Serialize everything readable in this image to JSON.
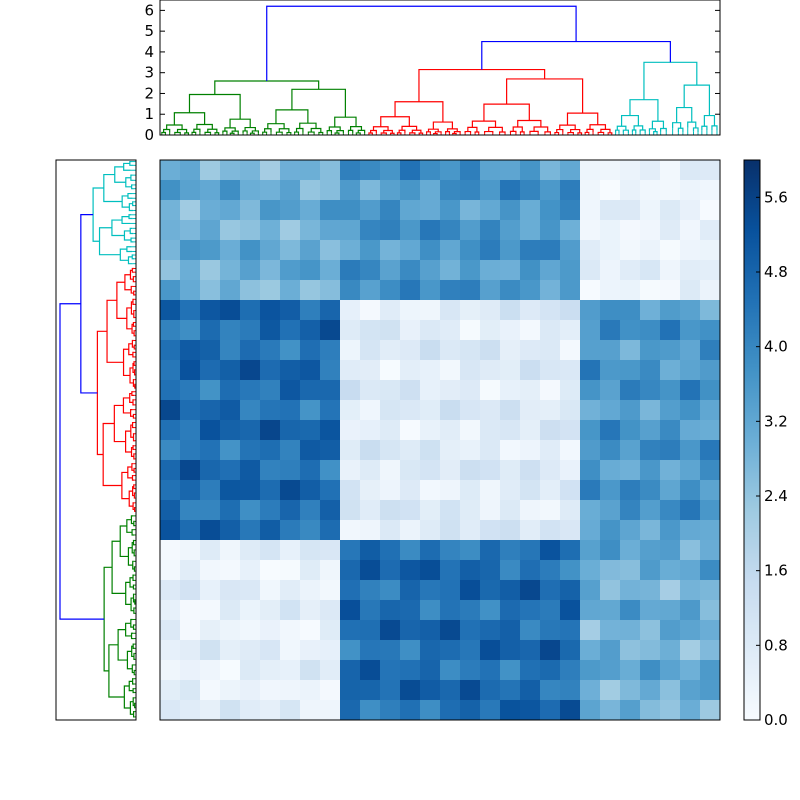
{
  "chart_data": [
    {
      "type": "dendrogram",
      "name": "top-dendrogram",
      "orientation": "top",
      "ylim": [
        0,
        6.5
      ],
      "y_ticks": [
        "0",
        "1",
        "2",
        "3",
        "4",
        "5",
        "6"
      ],
      "y_tick_values": [
        0,
        1,
        2,
        3,
        4,
        5,
        6
      ],
      "root_height": 6.2,
      "clusters": [
        {
          "name": "green",
          "color": "#008000",
          "leaf_range": [
            0,
            0.37
          ],
          "height": 2.6,
          "sub": [
            {
              "range": [
                0,
                0.18
              ],
              "h": 1.95
            },
            {
              "range": [
                0.18,
                0.37
              ],
              "h": 2.2
            }
          ]
        },
        {
          "name": "red",
          "color": "#ff0000",
          "leaf_range": [
            0.37,
            0.81
          ],
          "height": 3.15,
          "sub": [
            {
              "range": [
                0.37,
                0.54
              ],
              "h": 1.6
            },
            {
              "range": [
                0.54,
                0.81
              ],
              "h": 2.7
            }
          ]
        },
        {
          "name": "cyan",
          "color": "#00bfbf",
          "leaf_range": [
            0.81,
            1.0
          ],
          "height": 3.5,
          "sub": [
            {
              "range": [
                0.81,
                0.91
              ],
              "h": 1.7
            },
            {
              "range": [
                0.91,
                1.0
              ],
              "h": 2.4
            }
          ]
        }
      ],
      "links": [
        {
          "color": "#0000ff",
          "left": "green",
          "right": "red+cyan",
          "height": 6.2
        },
        {
          "color": "#0000ff",
          "left": "red",
          "right": "cyan",
          "height": 4.5
        }
      ]
    },
    {
      "type": "dendrogram",
      "name": "left-dendrogram",
      "orientation": "left",
      "root_height": 6.2,
      "clusters": [
        {
          "name": "cyan",
          "color": "#00bfbf",
          "leaf_range": [
            0,
            0.19
          ],
          "height": 3.5
        },
        {
          "name": "red",
          "color": "#ff0000",
          "leaf_range": [
            0.19,
            0.63
          ],
          "height": 3.15
        },
        {
          "name": "green",
          "color": "#008000",
          "leaf_range": [
            0.63,
            1.0
          ],
          "height": 2.6
        }
      ]
    },
    {
      "type": "heatmap",
      "name": "distance-matrix",
      "colormap": "Blues",
      "vmin": 0,
      "vmax": 6.0,
      "n": 28,
      "cluster_order": [
        "green",
        "red",
        "cyan"
      ],
      "cluster_sizes": [
        9,
        12,
        7
      ]
    },
    {
      "type": "colorbar",
      "name": "colorbar",
      "range": [
        0,
        6.0
      ],
      "tick_values": [
        0,
        0.8,
        1.6,
        2.4,
        3.2,
        4.0,
        4.8,
        5.6
      ],
      "tick_labels": [
        "0.0",
        "0.8",
        "1.6",
        "2.4",
        "3.2",
        "4.0",
        "4.8",
        "5.6"
      ],
      "colors": [
        "#f7fbff",
        "#deebf7",
        "#c6dbef",
        "#9ecae1",
        "#6baed6",
        "#4292c6",
        "#2171b5",
        "#08519c",
        "#08306b"
      ]
    }
  ]
}
